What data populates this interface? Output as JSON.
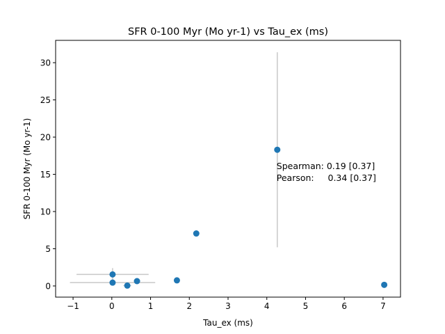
{
  "chart_data": {
    "type": "scatter",
    "title": "SFR 0-100 Myr (Mo yr-1) vs Tau_ex (ms)",
    "xlabel": "Tau_ex (ms)",
    "ylabel": "SFR 0-100 Myr (Mo yr-1)",
    "xlim": [
      -1.45,
      7.45
    ],
    "ylim": [
      -1.5,
      33.0
    ],
    "xticks": [
      -1,
      0,
      1,
      2,
      3,
      4,
      5,
      6,
      7
    ],
    "yticks": [
      0,
      5,
      10,
      15,
      20,
      25,
      30
    ],
    "grid": false,
    "marker_color": "#1f77b4",
    "errorbar_color": "#c8c8c8",
    "points": [
      {
        "x": 0.02,
        "y": 1.55,
        "xerr": 0.93,
        "yerr": 0.85
      },
      {
        "x": 0.02,
        "y": 0.45,
        "xerr": 1.1,
        "yerr": 0.0
      },
      {
        "x": 0.4,
        "y": 0.05,
        "xerr": 0.1,
        "yerr": 0.0
      },
      {
        "x": 0.65,
        "y": 0.65,
        "xerr": 0.0,
        "yerr": 0.0
      },
      {
        "x": 1.68,
        "y": 0.75,
        "xerr": 0.0,
        "yerr": 0.0
      },
      {
        "x": 2.18,
        "y": 7.05,
        "xerr": 0.0,
        "yerr": 0.0
      },
      {
        "x": 4.27,
        "y": 18.3,
        "xerr": 0.0,
        "yerr": 13.1
      },
      {
        "x": 7.03,
        "y": 0.15,
        "xerr": 0.0,
        "yerr": 0.0
      }
    ],
    "annotations": [
      {
        "text": "Spearman: 0.19 [0.37]",
        "x": 4.27,
        "y": 16.1
      },
      {
        "text": "Pearson:     0.34 [0.37]",
        "x": 4.27,
        "y": 14.5
      }
    ]
  }
}
